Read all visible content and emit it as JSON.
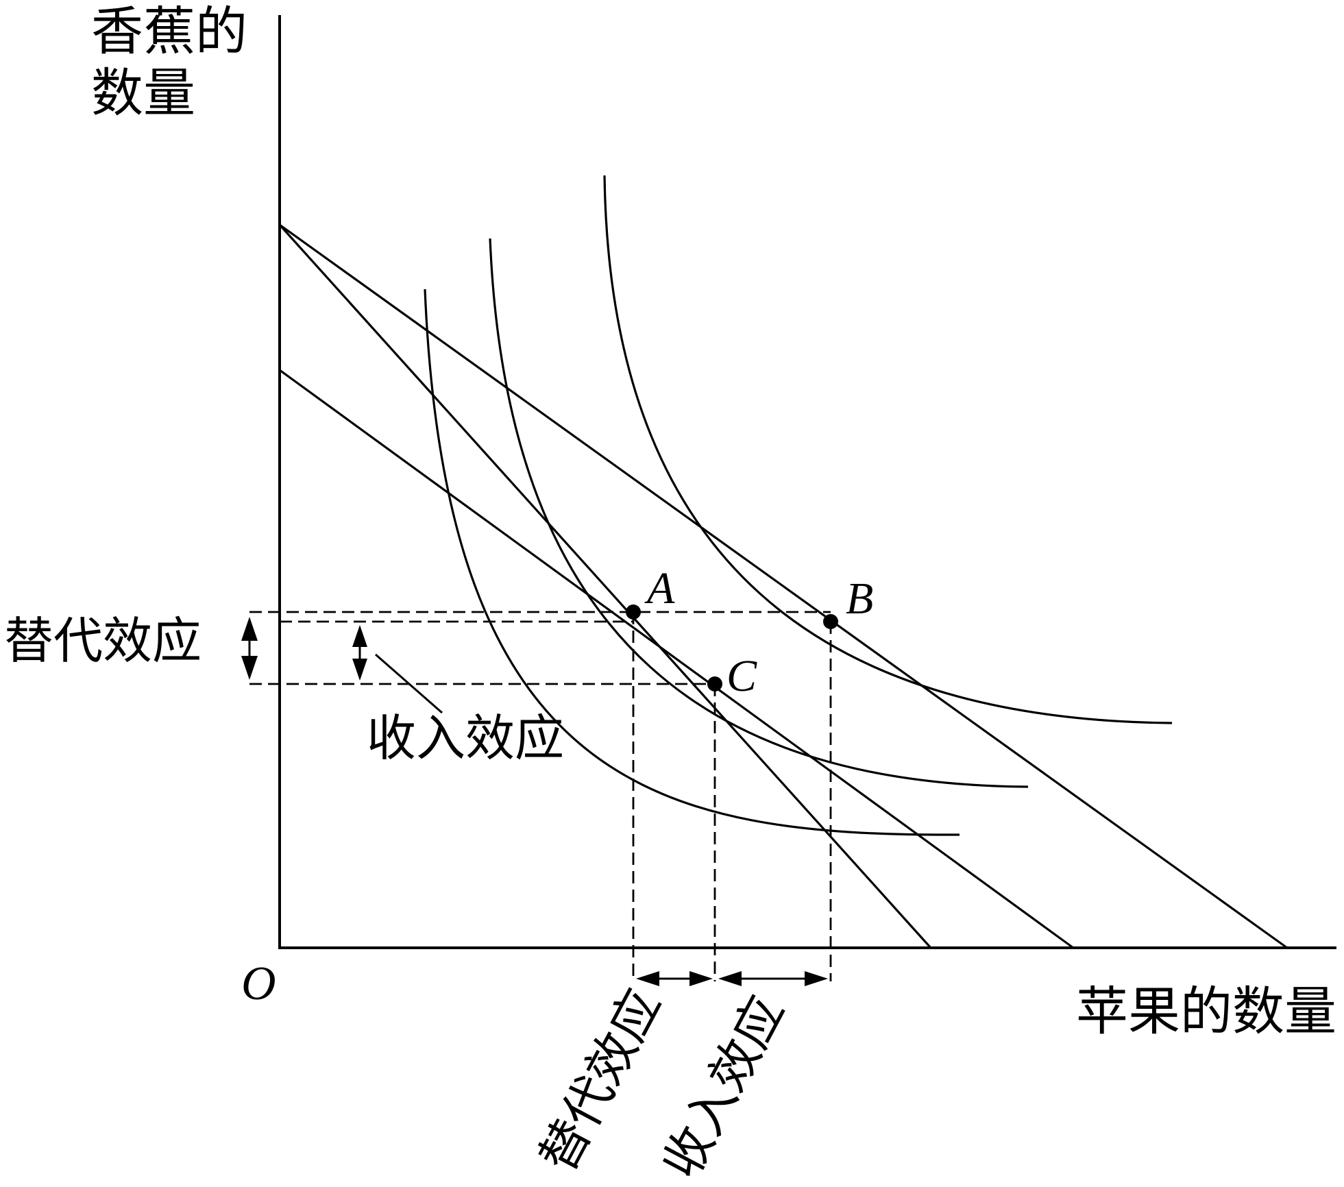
{
  "axes": {
    "y_label_line1": "香蕉的",
    "y_label_line2": "数量",
    "x_label": "苹果的数量",
    "origin": "O"
  },
  "points": {
    "A": "A",
    "B": "B",
    "C": "C"
  },
  "effects": {
    "substitution": "替代效应",
    "income": "收入效应"
  },
  "colors": {
    "ink": "#000000",
    "background": "#ffffff"
  }
}
